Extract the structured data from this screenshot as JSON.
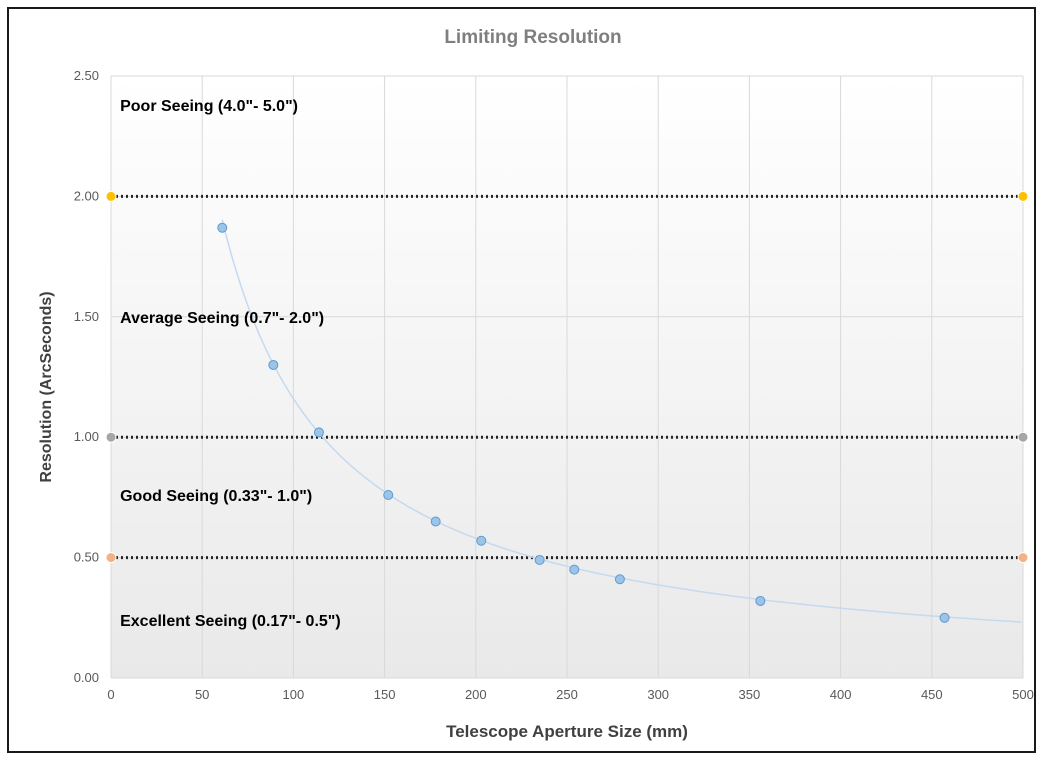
{
  "chart_data": {
    "type": "scatter",
    "title": "Limiting Resolution",
    "xlabel": "Telescope Aperture Size (mm)",
    "ylabel": "Resolution (ArcSeconds)",
    "xlim": [
      0,
      500
    ],
    "ylim": [
      0,
      2.5
    ],
    "x_ticks": [
      "0",
      "50",
      "100",
      "150",
      "200",
      "250",
      "300",
      "350",
      "400",
      "450",
      "500"
    ],
    "y_ticks": [
      "0.00",
      "0.50",
      "1.00",
      "1.50",
      "2.00",
      "2.50"
    ],
    "grid": "vertical and horizontal",
    "background": "gradient white to light gray",
    "series": [
      {
        "style": "markers",
        "color": "#9dc3e6",
        "points": [
          {
            "x": 61,
            "y": 1.87
          },
          {
            "x": 89,
            "y": 1.3
          },
          {
            "x": 114,
            "y": 1.02
          },
          {
            "x": 152,
            "y": 0.76
          },
          {
            "x": 178,
            "y": 0.65
          },
          {
            "x": 203,
            "y": 0.57
          },
          {
            "x": 235,
            "y": 0.49
          },
          {
            "x": 254,
            "y": 0.45
          },
          {
            "x": 279,
            "y": 0.41
          },
          {
            "x": 356,
            "y": 0.32
          },
          {
            "x": 457,
            "y": 0.25
          }
        ]
      },
      {
        "style": "smooth-trend-line",
        "color": "#c5d9ef",
        "function": "y = 116 / x",
        "x_range": [
          61,
          500
        ]
      }
    ],
    "reference_lines": [
      {
        "y": 2.0,
        "color": "#ffc000",
        "style": "dotted"
      },
      {
        "y": 1.0,
        "color": "#a6a6a6",
        "style": "dotted"
      },
      {
        "y": 0.5,
        "color": "#f4b183",
        "style": "dotted"
      }
    ],
    "annotations": [
      {
        "text": "Poor Seeing (4.0\"- 5.0\")",
        "x": 5,
        "y": 2.38
      },
      {
        "text": "Average Seeing (0.7\"- 2.0\")",
        "x": 5,
        "y": 1.5
      },
      {
        "text": "Good Seeing (0.33\"- 1.0\")",
        "x": 5,
        "y": 0.76
      },
      {
        "text": "Excellent Seeing (0.17\"- 0.5\")",
        "x": 5,
        "y": 0.24
      }
    ]
  }
}
